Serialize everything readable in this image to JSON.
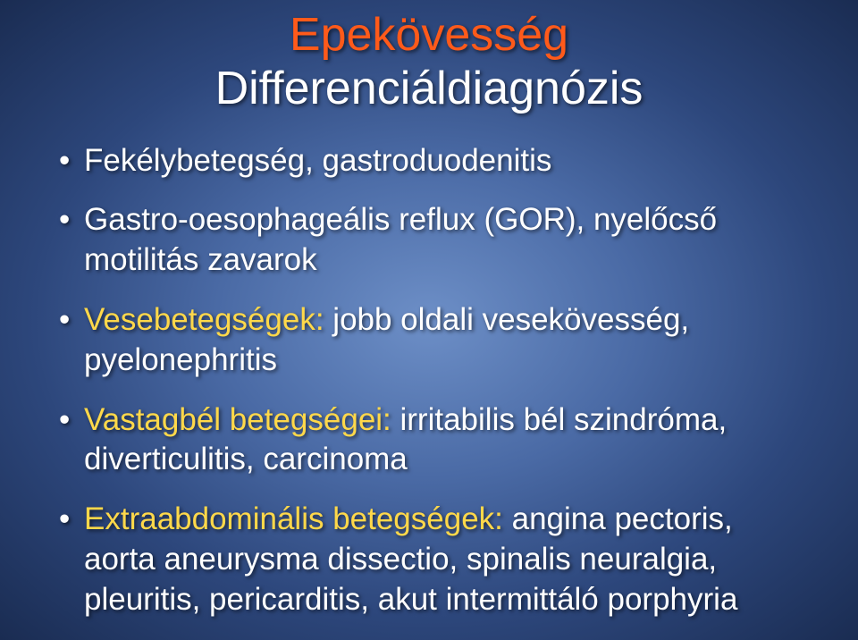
{
  "colors": {
    "title1": "#ff5a1a",
    "title2": "#ffffff",
    "body": "#ffffff",
    "highlight": "#ffd84a",
    "bg_center": "#6d8fc7",
    "bg_edge": "#1a2c52"
  },
  "fontsize": {
    "title": 52,
    "body": 35
  },
  "title": {
    "line1": "Epekövesség",
    "line2": "Differenciáldiagnózis"
  },
  "bullets": [
    {
      "prefix": "",
      "text": "Fekélybetegség, gastroduodenitis"
    },
    {
      "prefix": "",
      "text": "Gastro-oesophageális reflux (GOR), nyelőcső motilitás zavarok"
    },
    {
      "prefix": "Vesebetegségek:",
      "text": " jobb oldali vesekövesség, pyelonephritis"
    },
    {
      "prefix": "Vastagbél betegségei:",
      "text": " irritabilis bél szindróma, diverticulitis, carcinoma"
    },
    {
      "prefix": "Extraabdominális betegségek:",
      "text": " angina pectoris, aorta aneurysma dissectio, spinalis neuralgia, pleuritis, pericarditis, akut intermittáló porphyria"
    }
  ]
}
